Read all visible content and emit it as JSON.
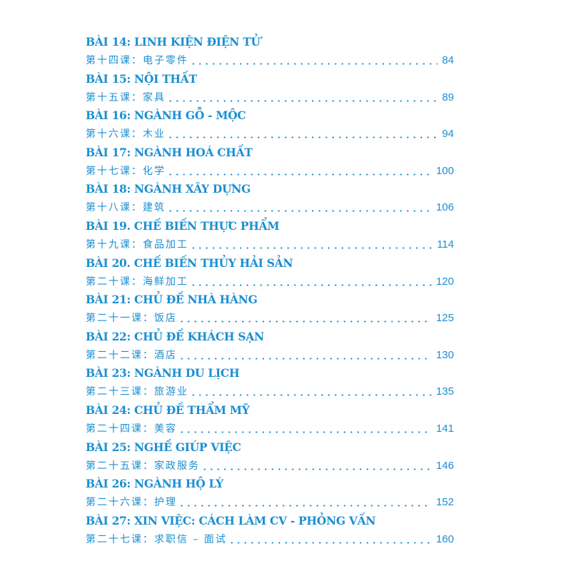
{
  "accent_color": "#1b8fd2",
  "entries": [
    {
      "title": "BÀI 14: LINH KIỆN ĐIỆN TỬ",
      "chinese": "第十四课：电子零件",
      "page": "84"
    },
    {
      "title": "BÀI 15: NỘI THẤT",
      "chinese": "第十五课：家具",
      "page": "89"
    },
    {
      "title": "BÀI 16: NGÀNH GỖ - MỘC",
      "chinese": "第十六课：木业",
      "page": "94"
    },
    {
      "title": "BÀI 17: NGÀNH HOÁ CHẤT",
      "chinese": "第十七课：化学",
      "page": "100"
    },
    {
      "title": "BÀI 18: NGÀNH XÂY DỰNG",
      "chinese": "第十八课：建筑",
      "page": "106"
    },
    {
      "title": "BÀI 19. CHẾ BIẾN THỰC PHẨM",
      "chinese": "第十九课：食品加工",
      "page": "114"
    },
    {
      "title": "BÀI 20. CHẾ BIẾN THỦY HẢI SẢN",
      "chinese": "第二十课：海鲜加工",
      "page": "120"
    },
    {
      "title": "BÀI 21: CHỦ ĐỀ NHÀ HÀNG",
      "chinese": "第二十一课：饭店",
      "page": "125"
    },
    {
      "title": "BÀI 22: CHỦ ĐỀ KHÁCH SẠN",
      "chinese": "第二十二课：酒店",
      "page": "130"
    },
    {
      "title": "BÀI 23: NGÀNH DU LỊCH",
      "chinese": "第二十三课：旅游业",
      "page": "135"
    },
    {
      "title": "BÀI 24: CHỦ ĐỀ THẨM MỸ",
      "chinese": "第二十四课：美容",
      "page": "141"
    },
    {
      "title": "BÀI 25: NGHỀ GIÚP VIỆC",
      "chinese": "第二十五课：家政服务",
      "page": "146"
    },
    {
      "title": "BÀI 26: NGÀNH HỘ LÝ",
      "chinese": "第二十六课：护理",
      "page": "152"
    },
    {
      "title": "BÀI 27:  XIN VIỆC: CÁCH LÀM CV - PHỎNG VẤN",
      "chinese": "第二十七课：求职信 – 面试",
      "page": "160"
    }
  ]
}
